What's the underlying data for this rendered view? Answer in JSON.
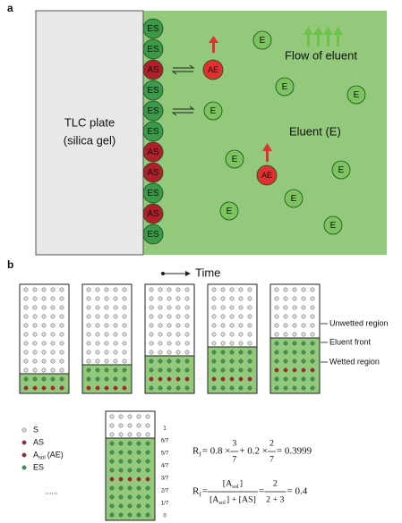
{
  "panel_a": {
    "label": "a",
    "plate": [
      "TLC plate",
      "(silica gel)"
    ],
    "column": [
      "ES",
      "ES",
      "AS",
      "ES",
      "ES",
      "ES",
      "AS",
      "AS",
      "ES",
      "AS",
      "ES"
    ],
    "adsorbed_eluent": [
      "AE",
      "AE"
    ],
    "eluent": [
      "E",
      "E",
      "E",
      "E",
      "E",
      "E",
      "E",
      "E",
      "E"
    ],
    "flow": "Flow of eluent",
    "eluent_label": "Eluent (E)"
  },
  "panel_b": {
    "label": "b",
    "time": "Time",
    "regions": [
      "Unwetted region",
      "Eluent front",
      "Wetted region"
    ],
    "legend": [
      {
        "label": "S"
      },
      {
        "label": "AS"
      },
      {
        "label": "A",
        "sub": "sol",
        "suffix": "(AE)"
      },
      {
        "label": "ES"
      }
    ],
    "ellipsis": "......",
    "fractions": [
      "1",
      "6/7",
      "5/7",
      "4/7",
      "3/7",
      "2/7",
      "1/7",
      "0"
    ],
    "equations": [
      [
        {
          "t": "R"
        },
        {
          "sub": "f"
        },
        {
          "t": " = 0.8 × "
        },
        {
          "num": [
            {
              "t": "3"
            }
          ],
          "den": [
            {
              "t": "7"
            }
          ]
        },
        {
          "t": " + 0.2 × "
        },
        {
          "num": [
            {
              "t": "2"
            }
          ],
          "den": [
            {
              "t": "7"
            }
          ]
        },
        {
          "t": " = 0.3999"
        }
      ],
      [
        {
          "t": "R"
        },
        {
          "sub": "f"
        },
        {
          "t": " = "
        },
        {
          "num": [
            {
              "t": "[A"
            },
            {
              "sub": "sol"
            },
            {
              "t": "]"
            }
          ],
          "den": [
            {
              "t": "[A"
            },
            {
              "sub": "sol"
            },
            {
              "t": "] + [AS]"
            }
          ]
        },
        {
          "t": " = "
        },
        {
          "num": [
            {
              "t": "2"
            }
          ],
          "den": [
            {
              "t": "2 + 3"
            }
          ]
        },
        {
          "t": " = 0.4"
        }
      ]
    ]
  }
}
